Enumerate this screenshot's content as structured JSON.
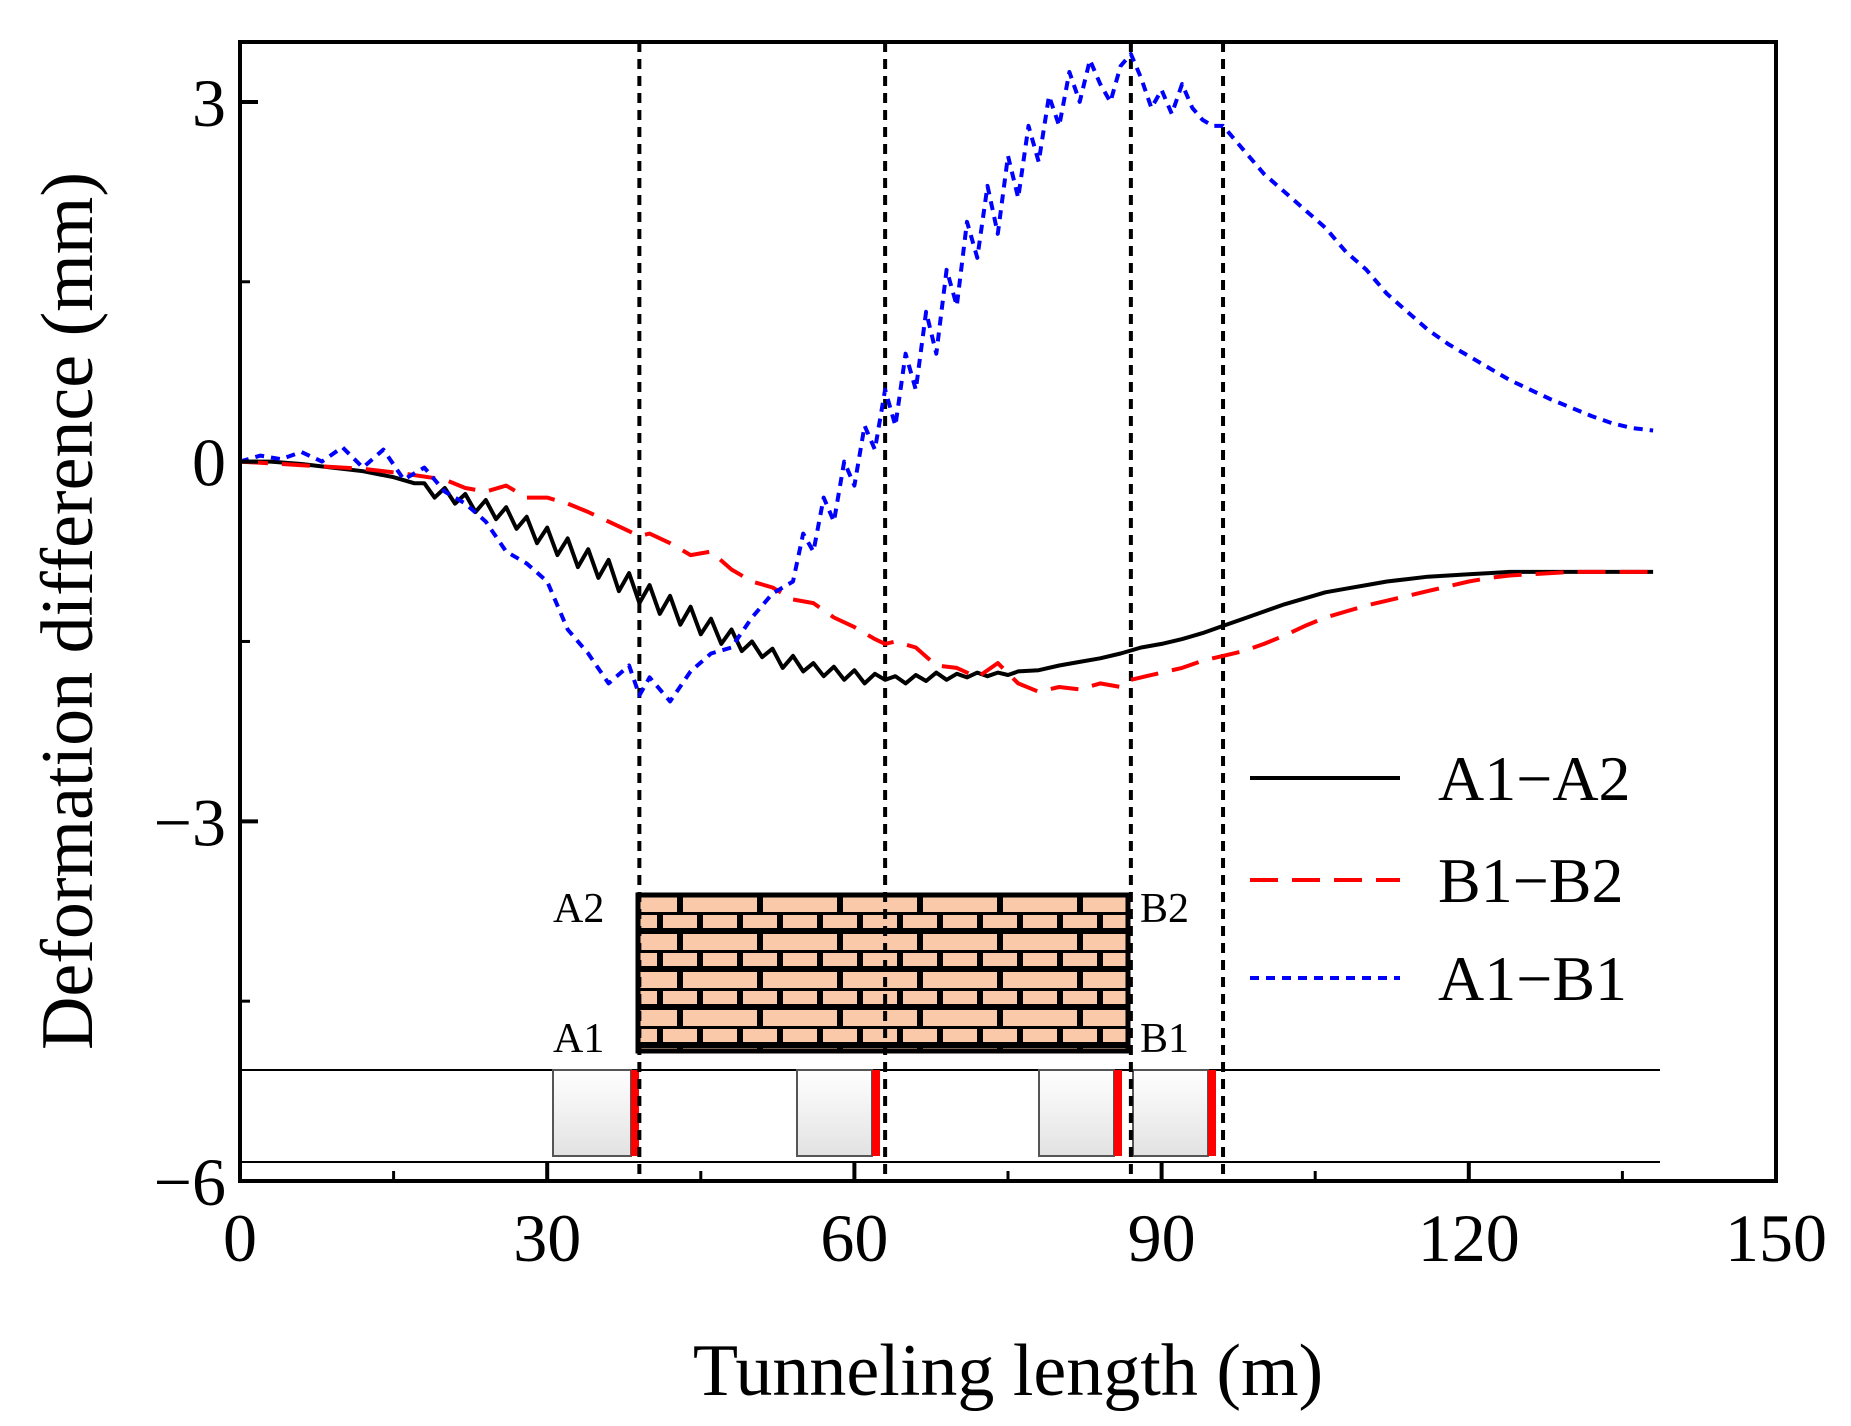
{
  "chart_data": {
    "type": "line",
    "title": "",
    "xlabel": "Tunneling length (m)",
    "ylabel": "Deformation difference (mm)",
    "xlim": [
      0,
      150
    ],
    "ylim": [
      -6,
      3.5
    ],
    "x_ticks": [
      0,
      30,
      60,
      90,
      120,
      150
    ],
    "x_tick_labels": [
      "0",
      "30",
      "60",
      "90",
      "120",
      "150"
    ],
    "y_ticks": [
      -6,
      -3,
      0,
      3
    ],
    "y_tick_labels": [
      "−6",
      "−3",
      "0",
      "3"
    ],
    "grid": false,
    "legend_position": "right",
    "reference_lines_x": [
      39,
      63,
      87,
      96
    ],
    "series": [
      {
        "name": "A1−A2",
        "color": "#000000",
        "dash": "solid",
        "x": [
          0,
          3,
          6,
          9,
          12,
          15,
          17,
          18,
          19,
          20,
          21,
          22,
          23,
          24,
          25,
          26,
          27,
          28,
          29,
          30,
          31,
          32,
          33,
          34,
          35,
          36,
          37,
          38,
          39,
          40,
          41,
          42,
          43,
          44,
          45,
          46,
          47,
          48,
          49,
          50,
          51,
          52,
          53,
          54,
          55,
          56,
          57,
          58,
          59,
          60,
          61,
          62,
          63,
          64,
          65,
          66,
          67,
          68,
          69,
          70,
          71,
          72,
          73,
          74,
          75,
          76,
          78,
          80,
          82,
          84,
          86,
          88,
          90,
          92,
          94,
          96,
          98,
          100,
          102,
          104,
          106,
          108,
          110,
          112,
          114,
          116,
          118,
          120,
          122,
          124,
          126,
          128,
          130,
          132,
          134,
          136,
          138
        ],
        "y": [
          0,
          0,
          -0.02,
          -0.05,
          -0.08,
          -0.13,
          -0.18,
          -0.18,
          -0.3,
          -0.22,
          -0.35,
          -0.27,
          -0.42,
          -0.32,
          -0.48,
          -0.38,
          -0.56,
          -0.46,
          -0.68,
          -0.55,
          -0.78,
          -0.64,
          -0.88,
          -0.73,
          -0.97,
          -0.82,
          -1.08,
          -0.93,
          -1.18,
          -1.03,
          -1.27,
          -1.12,
          -1.36,
          -1.21,
          -1.44,
          -1.31,
          -1.52,
          -1.4,
          -1.58,
          -1.5,
          -1.63,
          -1.56,
          -1.72,
          -1.62,
          -1.75,
          -1.68,
          -1.79,
          -1.71,
          -1.82,
          -1.74,
          -1.85,
          -1.77,
          -1.82,
          -1.79,
          -1.85,
          -1.78,
          -1.83,
          -1.76,
          -1.82,
          -1.77,
          -1.8,
          -1.76,
          -1.79,
          -1.76,
          -1.78,
          -1.75,
          -1.74,
          -1.7,
          -1.67,
          -1.64,
          -1.6,
          -1.55,
          -1.52,
          -1.48,
          -1.43,
          -1.37,
          -1.31,
          -1.25,
          -1.19,
          -1.14,
          -1.09,
          -1.06,
          -1.03,
          -1.0,
          -0.98,
          -0.96,
          -0.95,
          -0.94,
          -0.93,
          -0.92,
          -0.92,
          -0.92,
          -0.92,
          -0.92,
          -0.92,
          -0.92,
          -0.92
        ]
      },
      {
        "name": "B1−B2",
        "color": "#ff0000",
        "dash": "dashed",
        "x": [
          0,
          4,
          8,
          12,
          16,
          20,
          22,
          24,
          26,
          28,
          30,
          32,
          34,
          36,
          38,
          39,
          40,
          42,
          44,
          46,
          48,
          50,
          52,
          54,
          56,
          58,
          60,
          62,
          63,
          64,
          66,
          68,
          70,
          72,
          74,
          76,
          78,
          80,
          82,
          84,
          86,
          87,
          88,
          90,
          92,
          94,
          96,
          98,
          100,
          102,
          104,
          106,
          108,
          110,
          112,
          114,
          116,
          118,
          120,
          122,
          124,
          126,
          128,
          130,
          132,
          134,
          136,
          138
        ],
        "y": [
          0,
          -0.02,
          -0.04,
          -0.06,
          -0.1,
          -0.15,
          -0.22,
          -0.25,
          -0.2,
          -0.3,
          -0.3,
          -0.35,
          -0.42,
          -0.5,
          -0.58,
          -0.62,
          -0.6,
          -0.68,
          -0.78,
          -0.75,
          -0.9,
          -1.0,
          -1.05,
          -1.15,
          -1.18,
          -1.3,
          -1.38,
          -1.48,
          -1.52,
          -1.5,
          -1.55,
          -1.7,
          -1.72,
          -1.8,
          -1.68,
          -1.85,
          -1.92,
          -1.88,
          -1.9,
          -1.85,
          -1.88,
          -1.82,
          -1.8,
          -1.76,
          -1.72,
          -1.66,
          -1.62,
          -1.58,
          -1.52,
          -1.45,
          -1.37,
          -1.3,
          -1.25,
          -1.2,
          -1.16,
          -1.12,
          -1.08,
          -1.04,
          -1.0,
          -0.97,
          -0.95,
          -0.94,
          -0.93,
          -0.92,
          -0.92,
          -0.92,
          -0.92,
          -0.92
        ]
      },
      {
        "name": "A1−B1",
        "color": "#0000ff",
        "dash": "dotted",
        "x": [
          0,
          2,
          4,
          6,
          8,
          10,
          12,
          14,
          16,
          18,
          20,
          22,
          24,
          26,
          28,
          30,
          32,
          34,
          36,
          38,
          39,
          40,
          42,
          44,
          46,
          48,
          50,
          52,
          54,
          55,
          56,
          57,
          58,
          59,
          60,
          61,
          62,
          63,
          64,
          65,
          66,
          67,
          68,
          69,
          70,
          71,
          72,
          73,
          74,
          75,
          76,
          77,
          78,
          79,
          80,
          81,
          82,
          83,
          84,
          85,
          86,
          87,
          88,
          89,
          90,
          91,
          92,
          93,
          94,
          95,
          96,
          98,
          100,
          102,
          104,
          106,
          108,
          110,
          112,
          114,
          116,
          118,
          120,
          122,
          124,
          126,
          128,
          130,
          132,
          134,
          136,
          138
        ],
        "y": [
          0,
          0.05,
          0.02,
          0.08,
          0.0,
          0.12,
          -0.05,
          0.1,
          -0.15,
          -0.05,
          -0.25,
          -0.35,
          -0.5,
          -0.75,
          -0.85,
          -1.0,
          -1.4,
          -1.6,
          -1.85,
          -1.7,
          -1.95,
          -1.8,
          -2.0,
          -1.75,
          -1.6,
          -1.55,
          -1.3,
          -1.1,
          -1.0,
          -0.6,
          -0.75,
          -0.3,
          -0.5,
          0.0,
          -0.2,
          0.3,
          0.1,
          0.6,
          0.3,
          0.9,
          0.6,
          1.25,
          0.9,
          1.6,
          1.3,
          2.0,
          1.7,
          2.3,
          1.9,
          2.55,
          2.2,
          2.8,
          2.5,
          3.05,
          2.8,
          3.25,
          3.0,
          3.35,
          3.15,
          3.0,
          3.3,
          3.4,
          3.2,
          2.95,
          3.1,
          2.9,
          3.15,
          2.95,
          2.85,
          2.8,
          2.8,
          2.6,
          2.4,
          2.25,
          2.1,
          1.95,
          1.75,
          1.6,
          1.4,
          1.25,
          1.1,
          0.98,
          0.88,
          0.78,
          0.68,
          0.6,
          0.52,
          0.45,
          0.38,
          0.32,
          0.28,
          0.26
        ]
      }
    ],
    "annotations": {
      "points": [
        "A1",
        "A2",
        "B1",
        "B2"
      ]
    }
  }
}
